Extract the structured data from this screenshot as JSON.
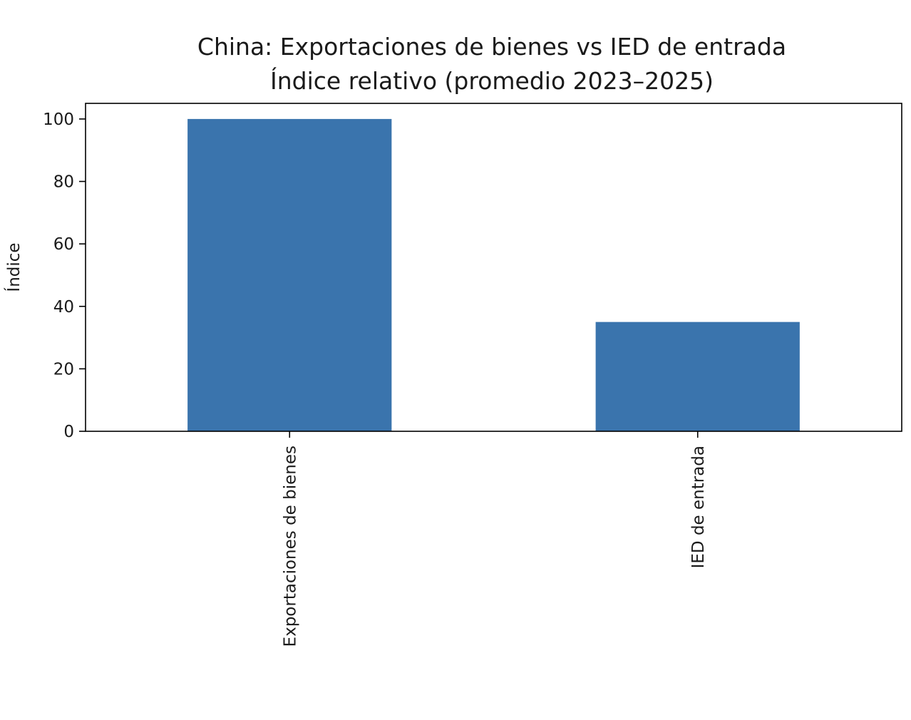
{
  "chart_data": {
    "type": "bar",
    "title": "China: Exportaciones de bienes vs IED de entrada",
    "subtitle": "Índice relativo (promedio 2023–2025)",
    "xlabel": "",
    "ylabel": "Índice",
    "categories": [
      "Exportaciones de bienes",
      "IED de entrada"
    ],
    "values": [
      100,
      35
    ],
    "ylim": [
      0,
      105
    ],
    "yticks": [
      0,
      20,
      40,
      60,
      80,
      100
    ],
    "bar_color": "#3a74ad",
    "grid": false,
    "legend": "none"
  }
}
